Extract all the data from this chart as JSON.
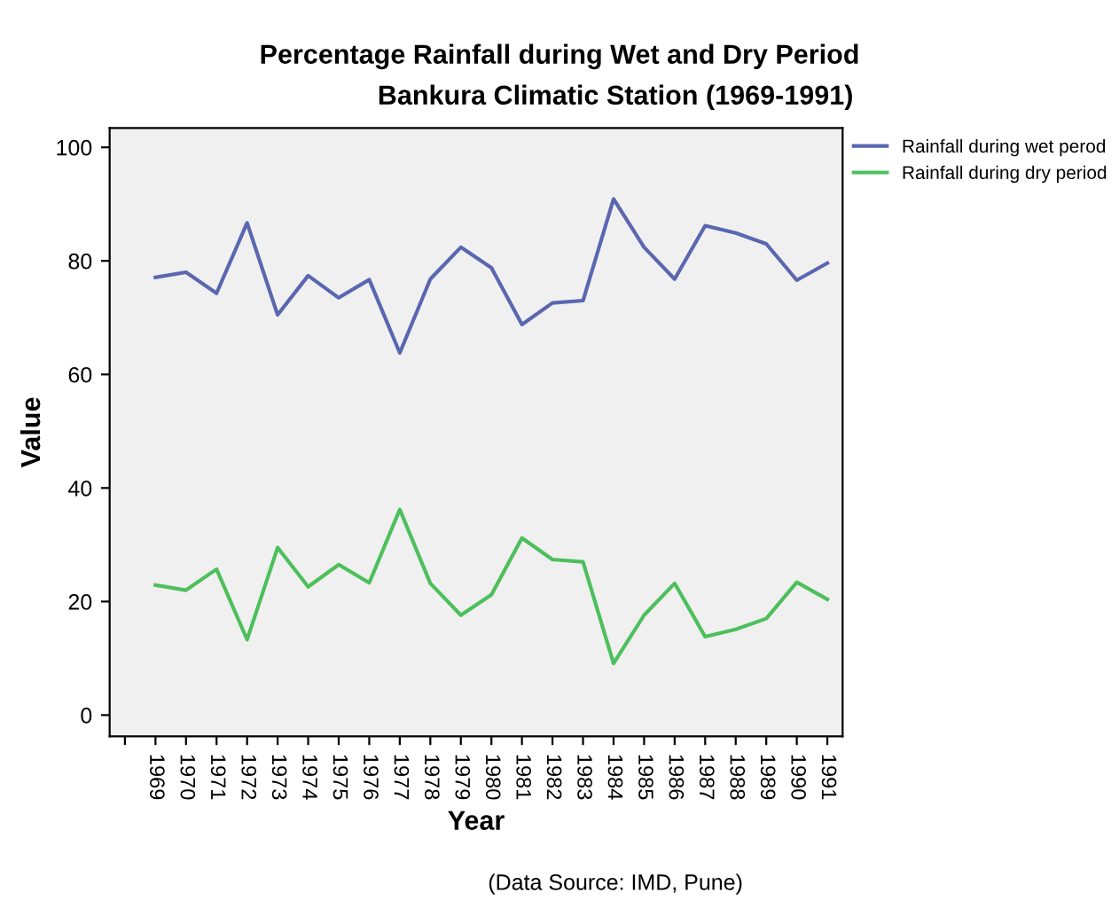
{
  "chart_data": {
    "type": "line",
    "title": "Percentage Rainfall during Wet and Dry Period",
    "subtitle": "Bankura Climatic Station (1969-1991)",
    "xlabel": "Year",
    "ylabel": "Value",
    "categories": [
      null,
      "1969",
      "1970",
      "1971",
      "1972",
      "1973",
      "1974",
      "1975",
      "1976",
      "1977",
      "1978",
      "1979",
      "1980",
      "1981",
      "1982",
      "1983",
      "1984",
      "1985",
      "1986",
      "1987",
      "1988",
      "1989",
      "1990",
      "1991"
    ],
    "series": [
      {
        "name": "Rainfall during wet perod",
        "color": "#5a67b0",
        "values": [
          null,
          77.1,
          78.0,
          74.3,
          86.7,
          70.5,
          77.4,
          73.5,
          76.7,
          63.8,
          76.8,
          82.4,
          78.8,
          68.8,
          72.6,
          73.0,
          90.9,
          82.4,
          76.8,
          86.2,
          84.9,
          83.0,
          76.6,
          79.6
        ]
      },
      {
        "name": "Rainfall during dry period",
        "color": "#4dbf5c",
        "values": [
          null,
          22.9,
          22.0,
          25.7,
          13.3,
          29.5,
          22.6,
          26.5,
          23.3,
          36.2,
          23.2,
          17.6,
          21.2,
          31.2,
          27.4,
          27.0,
          9.1,
          17.6,
          23.2,
          13.8,
          15.1,
          17.0,
          23.4,
          20.4
        ]
      }
    ],
    "ylim": [
      -3.75,
      103.4
    ],
    "yticks": [
      0,
      20,
      40,
      60,
      80,
      100
    ],
    "grid": false,
    "legend": "top right",
    "marker": "none",
    "line_style": "solid",
    "annotations": [
      "(Data Source: IMD, Pune)"
    ]
  }
}
